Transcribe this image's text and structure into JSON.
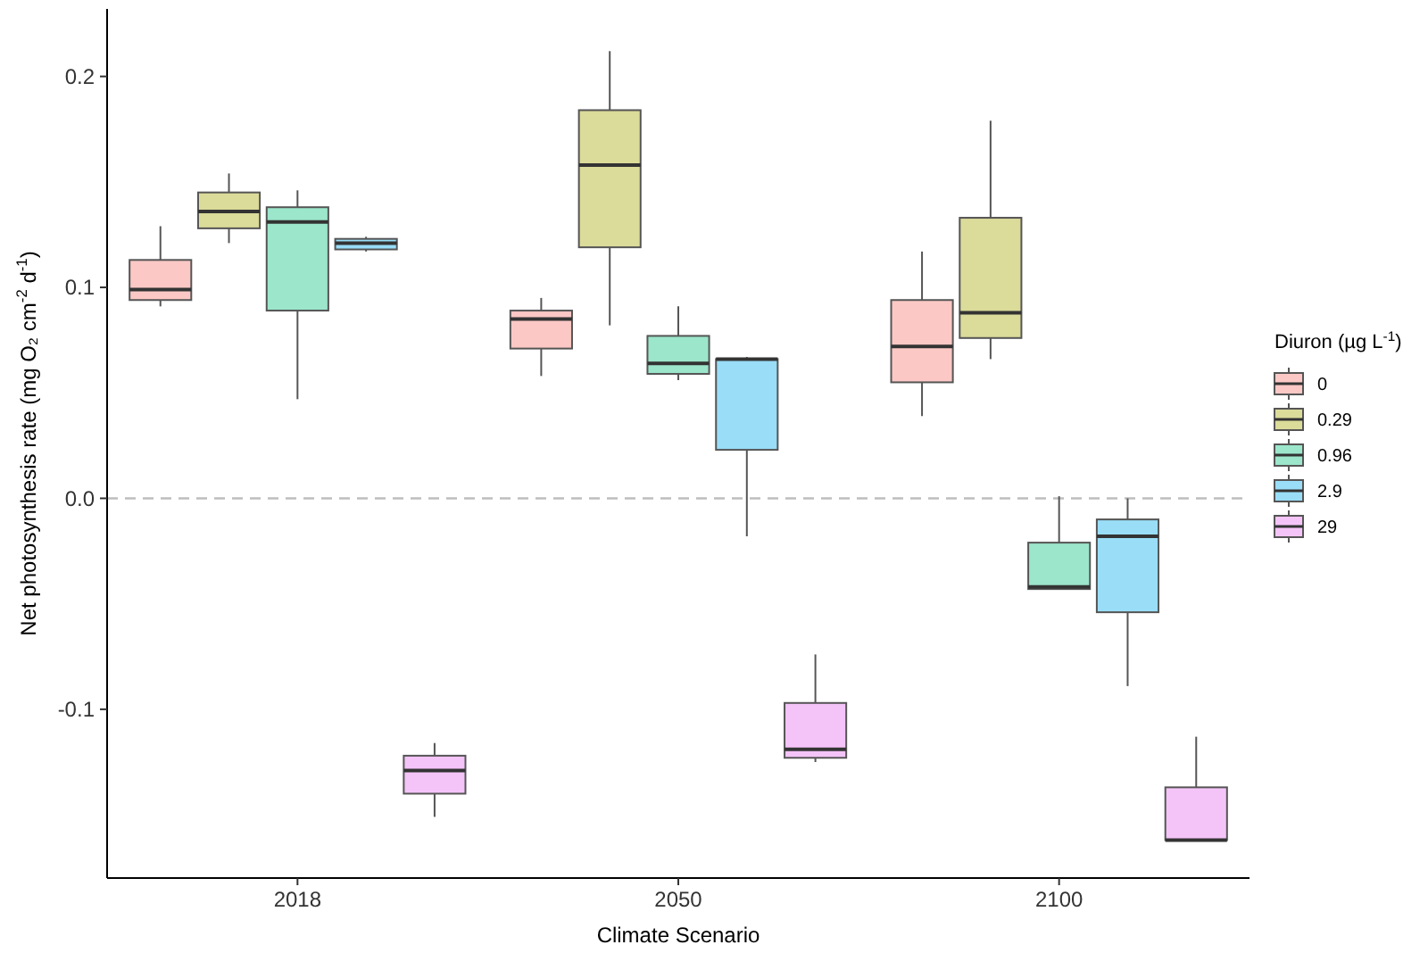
{
  "chart_data": {
    "type": "box",
    "xlabel": "Climate Scenario",
    "ylabel": "Net photosynthesis rate (mg O₂ cm$^{-2}$ d$^{-1}$)",
    "legend_title": "Diuron (µg L$^{-1}$)",
    "legend": "right",
    "categories": [
      "2018",
      "2050",
      "2100"
    ],
    "ylim": [
      -0.18,
      0.232
    ],
    "yticks": [
      -0.1,
      {
        "value": 0,
        "label": "0.0"
      },
      0.1,
      0.2
    ],
    "ref_lines": [
      {
        "axis": "y",
        "value": 0,
        "label": null,
        "color": "#bebebe",
        "line_style": "dashed"
      }
    ],
    "series": [
      {
        "name": "0",
        "color": "#fbc8c5",
        "boxes": [
          {
            "low": 0.091,
            "q1": 0.094,
            "median": 0.099,
            "q3": 0.113,
            "high": 0.129
          },
          {
            "low": 0.058,
            "q1": 0.071,
            "median": 0.085,
            "q3": 0.089,
            "high": 0.095
          },
          {
            "low": 0.039,
            "q1": 0.055,
            "median": 0.072,
            "q3": 0.094,
            "high": 0.117
          }
        ]
      },
      {
        "name": "0.29",
        "color": "#dbdb9a",
        "boxes": [
          {
            "low": 0.121,
            "q1": 0.128,
            "median": 0.136,
            "q3": 0.145,
            "high": 0.154
          },
          {
            "low": 0.082,
            "q1": 0.119,
            "median": 0.158,
            "q3": 0.184,
            "high": 0.212
          },
          {
            "low": 0.066,
            "q1": 0.076,
            "median": 0.088,
            "q3": 0.133,
            "high": 0.179
          }
        ]
      },
      {
        "name": "0.96",
        "color": "#9ce6cb",
        "boxes": [
          {
            "low": 0.047,
            "q1": 0.089,
            "median": 0.131,
            "q3": 0.138,
            "high": 0.146
          },
          {
            "low": 0.056,
            "q1": 0.059,
            "median": 0.064,
            "q3": 0.077,
            "high": 0.091
          },
          {
            "low": -0.043,
            "q1": -0.043,
            "median": -0.042,
            "q3": -0.021,
            "high": 0.001
          }
        ]
      },
      {
        "name": "2.9",
        "color": "#99ddf7",
        "boxes": [
          {
            "low": 0.117,
            "q1": 0.118,
            "median": 0.121,
            "q3": 0.123,
            "high": 0.124
          },
          {
            "low": -0.018,
            "q1": 0.023,
            "median": 0.066,
            "q3": 0.066,
            "high": 0.067
          },
          {
            "low": -0.089,
            "q1": -0.054,
            "median": -0.018,
            "q3": -0.01,
            "high": 0.0
          }
        ]
      },
      {
        "name": "29",
        "color": "#f4c4f8",
        "boxes": [
          {
            "low": -0.151,
            "q1": -0.14,
            "median": -0.129,
            "q3": -0.122,
            "high": -0.116
          },
          {
            "low": -0.125,
            "q1": -0.123,
            "median": -0.119,
            "q3": -0.097,
            "high": -0.074
          },
          {
            "low": -0.162,
            "q1": -0.162,
            "median": -0.162,
            "q3": -0.137,
            "high": -0.113
          }
        ]
      }
    ]
  }
}
